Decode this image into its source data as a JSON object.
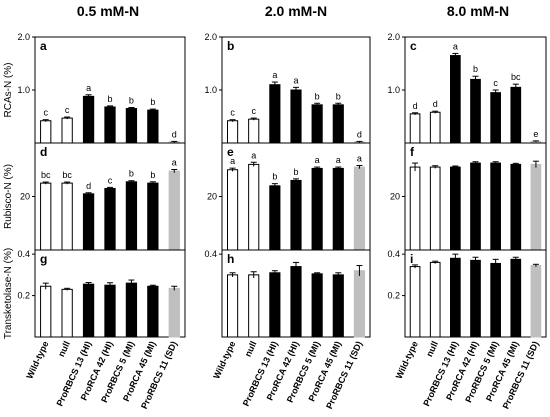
{
  "column_titles": [
    "0.5 mM-N",
    "2.0 mM-N",
    "8.0 mM-N"
  ],
  "chart_data": [
    {
      "type": "bar",
      "panel": "a",
      "ylabel": "RCAs-N (%)",
      "values": [
        0.42,
        0.47,
        0.88,
        0.68,
        0.65,
        0.62,
        0.02
      ],
      "errors": [
        0.02,
        0.02,
        0.03,
        0.02,
        0.02,
        0.02,
        0.01
      ],
      "annotations": [
        "c",
        "c",
        "a",
        "b",
        "b",
        "b",
        "d"
      ],
      "colors": [
        "#ffffff",
        "#ffffff",
        "#000000",
        "#000000",
        "#000000",
        "#000000",
        "#bfbfbf"
      ],
      "ylim": [
        0,
        2.0
      ],
      "yticks": [
        {
          "value": 1.0,
          "label": "1.0"
        },
        {
          "value": 2.0,
          "label": "2.0"
        }
      ]
    },
    {
      "type": "bar",
      "panel": "b",
      "values": [
        0.42,
        0.45,
        1.1,
        1.0,
        0.72,
        0.72,
        0.02
      ],
      "errors": [
        0.02,
        0.02,
        0.05,
        0.05,
        0.03,
        0.03,
        0.01
      ],
      "annotations": [
        "c",
        "c",
        "a",
        "a",
        "b",
        "b",
        "d"
      ],
      "colors": [
        "#ffffff",
        "#ffffff",
        "#000000",
        "#000000",
        "#000000",
        "#000000",
        "#bfbfbf"
      ],
      "ylim": [
        0,
        2.0
      ],
      "yticks": [
        {
          "value": 1.0,
          "label": "1.0"
        },
        {
          "value": 2.0,
          "label": "2.0"
        }
      ]
    },
    {
      "type": "bar",
      "panel": "c",
      "values": [
        0.55,
        0.58,
        1.65,
        1.2,
        0.95,
        1.05,
        0.03
      ],
      "errors": [
        0.02,
        0.02,
        0.04,
        0.06,
        0.05,
        0.06,
        0.01
      ],
      "annotations": [
        "d",
        "d",
        "a",
        "b",
        "c",
        "bc",
        "e"
      ],
      "colors": [
        "#ffffff",
        "#ffffff",
        "#000000",
        "#000000",
        "#000000",
        "#000000",
        "#bfbfbf"
      ],
      "ylim": [
        0,
        2.0
      ],
      "yticks": [
        {
          "value": 1.0,
          "label": "1.0"
        },
        {
          "value": 2.0,
          "label": "2.0"
        }
      ]
    },
    {
      "type": "bar",
      "panel": "d",
      "ylabel": "Rubisco-N (%)",
      "values": [
        25,
        25,
        21,
        23,
        25.5,
        25,
        29.5
      ],
      "errors": [
        0.4,
        0.4,
        0.4,
        0.4,
        0.4,
        0.5,
        0.6
      ],
      "annotations": [
        "bc",
        "bc",
        "d",
        "c",
        "b",
        "b",
        "a"
      ],
      "colors": [
        "#ffffff",
        "#ffffff",
        "#000000",
        "#000000",
        "#000000",
        "#000000",
        "#bfbfbf"
      ],
      "ylim": [
        0,
        40
      ],
      "yticks": [
        20
      ]
    },
    {
      "type": "bar",
      "panel": "e",
      "values": [
        30,
        32,
        24,
        26,
        30.5,
        30.5,
        31
      ],
      "errors": [
        0.6,
        0.8,
        0.8,
        0.6,
        0.5,
        0.5,
        0.6
      ],
      "annotations": [
        "a",
        "a",
        "b",
        "b",
        "a",
        "a",
        "a"
      ],
      "colors": [
        "#ffffff",
        "#ffffff",
        "#000000",
        "#000000",
        "#000000",
        "#000000",
        "#bfbfbf"
      ],
      "ylim": [
        0,
        40
      ],
      "yticks": [
        20
      ]
    },
    {
      "type": "bar",
      "panel": "f",
      "values": [
        31,
        31,
        31,
        32.5,
        32.5,
        32,
        32
      ],
      "errors": [
        1.5,
        0.5,
        0.4,
        0.5,
        0.5,
        0.4,
        1.2
      ],
      "colors": [
        "#ffffff",
        "#ffffff",
        "#000000",
        "#000000",
        "#000000",
        "#000000",
        "#bfbfbf"
      ],
      "ylim": [
        0,
        40
      ],
      "yticks": [
        20
      ]
    },
    {
      "type": "bar",
      "panel": "g",
      "ylabel": "Transketolase-N (%)",
      "categories": [
        "Wild-type",
        "null",
        "ProRBCS 13 (HI)",
        "ProRCA 42 (HI)",
        "ProRBCS 5 (MI)",
        "ProRCA 45 (MI)",
        "ProRBCS 11 (SD)"
      ],
      "values": [
        0.245,
        0.23,
        0.255,
        0.25,
        0.26,
        0.245,
        0.235
      ],
      "errors": [
        0.015,
        0.005,
        0.008,
        0.012,
        0.015,
        0.005,
        0.01
      ],
      "colors": [
        "#ffffff",
        "#ffffff",
        "#000000",
        "#000000",
        "#000000",
        "#000000",
        "#bfbfbf"
      ],
      "ylim": [
        0,
        0.42
      ],
      "yticks": [
        0.2,
        0.4
      ]
    },
    {
      "type": "bar",
      "panel": "h",
      "categories": [
        "Wild-type",
        "null",
        "ProRBCS 13 (HI)",
        "ProRCA 42 (HI)",
        "ProRBCS 5 (MI)",
        "ProRCA 45 (MI)",
        "ProRBCS 11 (SD)"
      ],
      "values": [
        0.3,
        0.3,
        0.31,
        0.34,
        0.305,
        0.3,
        0.32
      ],
      "errors": [
        0.01,
        0.015,
        0.01,
        0.02,
        0.005,
        0.01,
        0.025
      ],
      "colors": [
        "#ffffff",
        "#ffffff",
        "#000000",
        "#000000",
        "#000000",
        "#000000",
        "#bfbfbf"
      ],
      "ylim": [
        0,
        0.42
      ],
      "yticks": [
        0.4
      ]
    },
    {
      "type": "bar",
      "panel": "i",
      "categories": [
        "Wild-type",
        "null",
        "ProRBCS 13 (HI)",
        "ProRCA 42 (HI)",
        "ProRBCS 5 (MI)",
        "ProRCA 45 (MI)",
        "ProRBCS 11 (SD)"
      ],
      "values": [
        0.34,
        0.36,
        0.38,
        0.37,
        0.355,
        0.375,
        0.345
      ],
      "errors": [
        0.008,
        0.006,
        0.02,
        0.015,
        0.02,
        0.01,
        0.006
      ],
      "colors": [
        "#ffffff",
        "#ffffff",
        "#000000",
        "#000000",
        "#000000",
        "#000000",
        "#bfbfbf"
      ],
      "ylim": [
        0,
        0.42
      ],
      "yticks": [
        0.2,
        0.4
      ]
    }
  ]
}
